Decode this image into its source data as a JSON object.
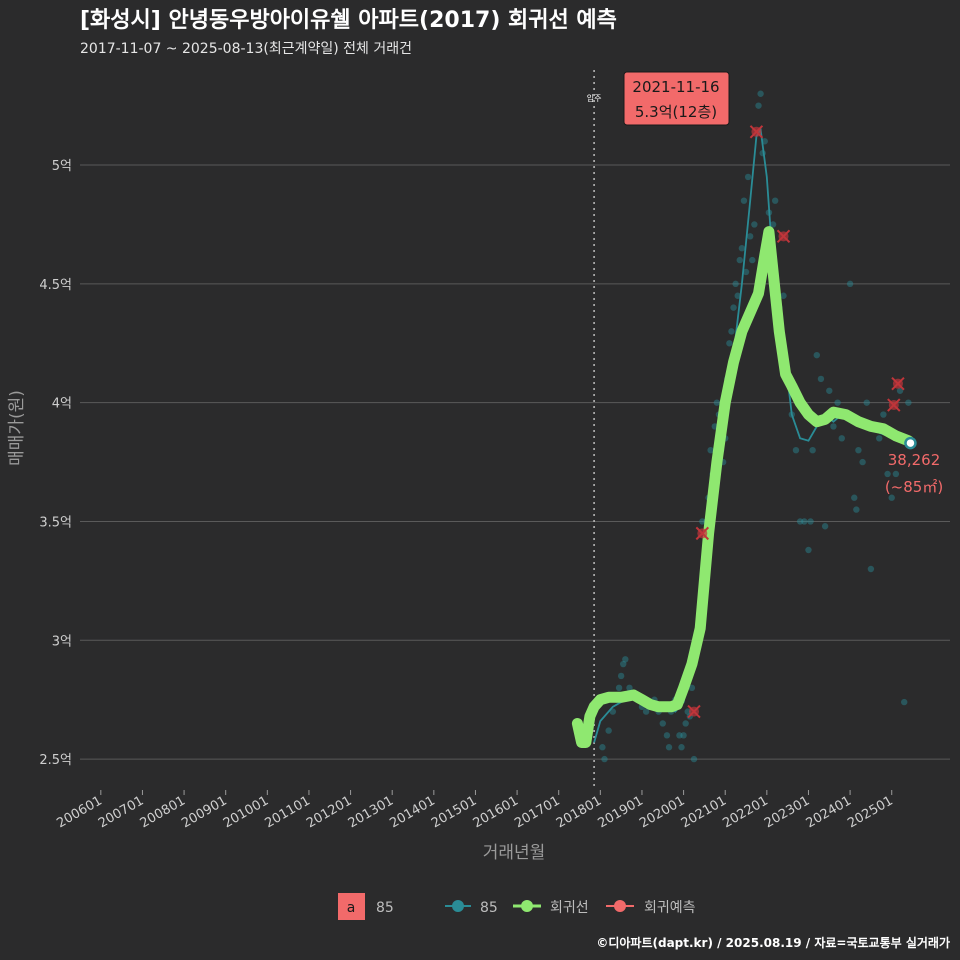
{
  "title": "[화성시] 안녕동우방아이유쉘 아파트(2017) 회귀선 예측",
  "subtitle": "2017-11-07 ~ 2025-08-13(최근계약일) 전체 거래건",
  "footer": "©디아파트(dapt.kr) / 2025.08.19 / 자료=국토교통부 실거래가",
  "colors": {
    "background": "#2b2b2c",
    "grid": "#5a5a5a",
    "series85": "#2a8c96",
    "regression": "#8fe870",
    "prediction": "#c0353a",
    "callout_bg": "#f26a6a",
    "label_red": "#f26a6a"
  },
  "chart_data": {
    "type": "scatter",
    "title": "[화성시] 안녕동우방아이유쉘 아파트(2017) 회귀선 예측",
    "xlabel": "거래년월",
    "ylabel": "매매가(원)",
    "x_range": [
      2005.5,
      2026.4
    ],
    "ylim": [
      2.37,
      5.4
    ],
    "x_ticks": [
      {
        "label": "200601",
        "x": 2006.0
      },
      {
        "label": "200701",
        "x": 2007.0
      },
      {
        "label": "200801",
        "x": 2008.0
      },
      {
        "label": "200901",
        "x": 2009.0
      },
      {
        "label": "201001",
        "x": 2010.0
      },
      {
        "label": "201101",
        "x": 2011.0
      },
      {
        "label": "201201",
        "x": 2012.0
      },
      {
        "label": "201301",
        "x": 2013.0
      },
      {
        "label": "201401",
        "x": 2014.0
      },
      {
        "label": "201501",
        "x": 2015.0
      },
      {
        "label": "201601",
        "x": 2016.0
      },
      {
        "label": "201701",
        "x": 2017.0
      },
      {
        "label": "201801",
        "x": 2018.0
      },
      {
        "label": "201901",
        "x": 2019.0
      },
      {
        "label": "202001",
        "x": 2020.0
      },
      {
        "label": "202101",
        "x": 2021.0
      },
      {
        "label": "202201",
        "x": 2022.0
      },
      {
        "label": "202301",
        "x": 2023.0
      },
      {
        "label": "202401",
        "x": 2024.0
      },
      {
        "label": "202501",
        "x": 2025.0
      }
    ],
    "y_ticks": [
      {
        "label": "2.5억",
        "value": 2.5
      },
      {
        "label": "3억",
        "value": 3.0
      },
      {
        "label": "3.5억",
        "value": 3.5
      },
      {
        "label": "4억",
        "value": 4.0
      },
      {
        "label": "4.5억",
        "value": 4.5
      },
      {
        "label": "5억",
        "value": 5.0
      }
    ],
    "move_in": {
      "label": "입주",
      "x": 2017.85
    },
    "series": [
      {
        "name": "85",
        "kind": "trend_line",
        "x": [
          2017.85,
          2018.0,
          2018.3,
          2018.6,
          2018.9,
          2019.1,
          2019.3,
          2019.6,
          2019.8,
          2020.0,
          2020.2,
          2020.4,
          2020.6,
          2020.8,
          2021.0,
          2021.2,
          2021.4,
          2021.6,
          2021.75,
          2021.85,
          2022.0,
          2022.1,
          2022.2,
          2022.4,
          2022.6,
          2022.8,
          2023.0,
          2023.2,
          2023.4,
          2023.6,
          2023.8,
          2024.0,
          2024.3,
          2024.6,
          2024.9,
          2025.2,
          2025.45
        ],
        "y": [
          2.57,
          2.66,
          2.72,
          2.75,
          2.77,
          2.76,
          2.74,
          2.72,
          2.7,
          2.74,
          2.92,
          3.2,
          3.55,
          3.85,
          4.0,
          4.2,
          4.5,
          4.85,
          5.12,
          5.15,
          4.95,
          4.7,
          4.52,
          4.25,
          3.95,
          3.85,
          3.84,
          3.9,
          3.95,
          3.92,
          3.95,
          3.93,
          3.9,
          3.88,
          3.86,
          3.84,
          3.83
        ]
      },
      {
        "name": "회귀선",
        "kind": "regression_line",
        "x": [
          2017.45,
          2017.55,
          2017.65,
          2017.75,
          2017.85,
          2018.0,
          2018.2,
          2018.5,
          2018.8,
          2019.0,
          2019.2,
          2019.4,
          2019.55,
          2019.7,
          2019.85,
          2020.0,
          2020.2,
          2020.4,
          2020.6,
          2020.8,
          2021.0,
          2021.2,
          2021.4,
          2021.6,
          2021.8,
          2021.95,
          2022.05,
          2022.15,
          2022.3,
          2022.45,
          2022.6,
          2022.8,
          2023.0,
          2023.2,
          2023.4,
          2023.6,
          2023.9,
          2024.2,
          2024.5,
          2024.8,
          2025.1,
          2025.4
        ],
        "y": [
          2.65,
          2.57,
          2.57,
          2.68,
          2.72,
          2.75,
          2.76,
          2.76,
          2.77,
          2.75,
          2.73,
          2.72,
          2.72,
          2.72,
          2.73,
          2.8,
          2.9,
          3.05,
          3.45,
          3.75,
          4.0,
          4.17,
          4.3,
          4.38,
          4.46,
          4.62,
          4.72,
          4.55,
          4.3,
          4.12,
          4.07,
          4.0,
          3.95,
          3.92,
          3.93,
          3.96,
          3.95,
          3.92,
          3.9,
          3.89,
          3.86,
          3.84
        ]
      },
      {
        "name": "회귀예측",
        "kind": "prediction_markers",
        "x": [
          2020.45,
          2020.25,
          2021.75,
          2022.4,
          2025.05,
          2025.15
        ],
        "y": [
          3.45,
          2.7,
          5.14,
          4.7,
          3.99,
          4.08
        ]
      }
    ],
    "scatter_points": {
      "name": "85",
      "x": [
        2018.05,
        2018.1,
        2018.2,
        2018.3,
        2018.4,
        2018.45,
        2018.5,
        2018.55,
        2018.6,
        2018.7,
        2018.8,
        2018.9,
        2019.0,
        2019.1,
        2019.2,
        2019.3,
        2019.4,
        2019.5,
        2019.6,
        2019.65,
        2019.7,
        2019.8,
        2019.9,
        2019.95,
        2020.0,
        2020.05,
        2020.1,
        2020.15,
        2020.2,
        2020.25,
        2020.3,
        2020.35,
        2020.4,
        2020.45,
        2020.5,
        2020.55,
        2020.6,
        2020.65,
        2020.7,
        2020.75,
        2020.8,
        2020.85,
        2020.9,
        2020.95,
        2021.0,
        2021.05,
        2021.1,
        2021.15,
        2021.2,
        2021.25,
        2021.3,
        2021.35,
        2021.4,
        2021.45,
        2021.5,
        2021.55,
        2021.6,
        2021.65,
        2021.7,
        2021.8,
        2021.85,
        2021.9,
        2021.95,
        2022.05,
        2022.1,
        2022.15,
        2022.2,
        2022.3,
        2022.35,
        2022.4,
        2022.5,
        2022.6,
        2022.7,
        2022.8,
        2022.9,
        2023.0,
        2023.05,
        2023.1,
        2023.2,
        2023.3,
        2023.4,
        2023.5,
        2023.6,
        2023.7,
        2023.8,
        2023.9,
        2024.0,
        2024.1,
        2024.15,
        2024.2,
        2024.3,
        2024.4,
        2024.5,
        2024.6,
        2024.7,
        2024.8,
        2024.9,
        2025.0,
        2025.1,
        2025.2,
        2025.3,
        2025.35,
        2025.4
      ],
      "y": [
        2.55,
        2.5,
        2.62,
        2.7,
        2.75,
        2.8,
        2.85,
        2.9,
        2.92,
        2.8,
        2.78,
        2.75,
        2.72,
        2.7,
        2.72,
        2.75,
        2.7,
        2.65,
        2.6,
        2.55,
        2.7,
        2.75,
        2.6,
        2.55,
        2.6,
        2.65,
        2.7,
        2.68,
        2.8,
        2.5,
        2.95,
        3.0,
        3.1,
        3.5,
        3.35,
        3.5,
        3.6,
        3.8,
        3.7,
        3.9,
        4.0,
        3.95,
        3.8,
        3.75,
        3.85,
        4.1,
        4.25,
        4.3,
        4.4,
        4.5,
        4.45,
        4.6,
        4.65,
        4.85,
        4.55,
        4.95,
        4.7,
        4.6,
        4.75,
        5.25,
        5.3,
        5.05,
        5.1,
        4.8,
        4.65,
        4.75,
        4.85,
        4.4,
        4.3,
        4.45,
        4.1,
        3.95,
        3.8,
        3.5,
        3.5,
        3.38,
        3.5,
        3.8,
        4.2,
        4.1,
        3.48,
        4.05,
        3.9,
        4.0,
        3.85,
        3.95,
        4.5,
        3.6,
        3.55,
        3.8,
        3.75,
        4.0,
        3.3,
        3.9,
        3.85,
        3.95,
        3.7,
        3.6,
        3.7,
        4.05,
        2.74,
        3.85,
        4.0
      ]
    },
    "callout": {
      "date": "2021-11-16",
      "value": "5.3억(12층)"
    },
    "last_point": {
      "x": 2025.45,
      "y": 3.83,
      "label_line1": "38,262",
      "label_line2": "(~85㎡)"
    },
    "legend": {
      "box_letter": "a",
      "box_label": "85",
      "items": [
        "85",
        "회귀선",
        "회귀예측"
      ]
    }
  }
}
